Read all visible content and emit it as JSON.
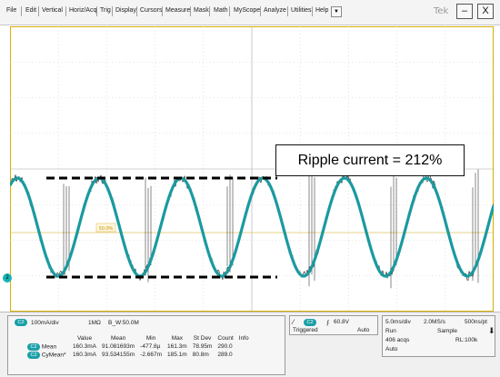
{
  "menu": {
    "items": [
      "File",
      "Edit",
      "Vertical",
      "Horiz/Acq",
      "Trig",
      "Display",
      "Cursors",
      "Measure",
      "Mask",
      "Math",
      "MyScope",
      "Analyze",
      "Utilities",
      "Help"
    ],
    "dropdown_glyph": "▼",
    "brand": "Tek",
    "minimize": "–",
    "close": "X"
  },
  "plot": {
    "annotation": "Ripple current = 212%",
    "trigger_marker": "50.0%",
    "channel_marker": "2",
    "colors": {
      "waveform": "#1a9aa0",
      "noise": "#111111",
      "grid": "#cfcfcf",
      "trigger_line": "#e0c060",
      "border": "#d8b000",
      "dashed": "#000000"
    }
  },
  "channel": {
    "badge": "C2",
    "scale": "100mA/div",
    "impedance": "1MΩ",
    "bw": "B_W:50.0M"
  },
  "measurements": {
    "headers": [
      "Value",
      "Mean",
      "Min",
      "Max",
      "St Dev",
      "Count",
      "Info"
    ],
    "rows": [
      {
        "badge": "C2",
        "name": "Mean",
        "cells": [
          "160.3mA",
          "91.081693m",
          "-477.8µ",
          "161.3m",
          "78.95m",
          "290.0",
          ""
        ]
      },
      {
        "badge": "C2",
        "name": "CyMean*",
        "cells": [
          "160.3mA",
          "93.534155m",
          "-2.667m",
          "185.1m",
          "80.8m",
          "289.0",
          ""
        ]
      }
    ]
  },
  "trigger": {
    "badge": "C2",
    "level": "60.8V",
    "status": "Triggered",
    "mode": "Auto"
  },
  "acquisition": {
    "timebase": "5.0ms/div",
    "sample_rate": "2.0MS/s",
    "resolution": "500ns/pt",
    "run_state": "Run",
    "mode": "Sample",
    "acqs": "406 acqs",
    "record_length": "RL:100k",
    "trigger_mode": "Auto"
  }
}
